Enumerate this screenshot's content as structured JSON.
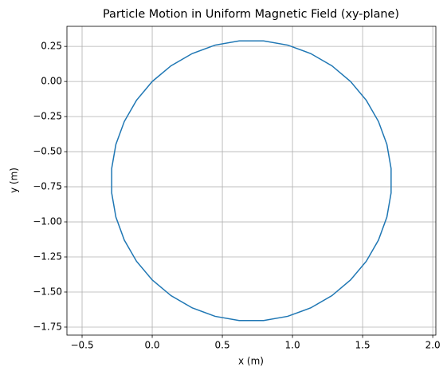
{
  "chart_data": {
    "type": "line",
    "title": "Particle Motion in Uniform Magnetic Field (xy-plane)",
    "xlabel": "x (m)",
    "ylabel": "y (m)",
    "x": [
      0,
      -0.112,
      -0.199,
      -0.259,
      -0.289,
      -0.289,
      -0.259,
      -0.199,
      -0.112,
      0,
      0.134,
      0.285,
      0.448,
      0.62,
      0.794,
      0.966,
      1.13,
      1.281,
      1.414,
      1.526,
      1.613,
      1.673,
      1.703,
      1.703,
      1.673,
      1.613,
      1.526,
      1.414,
      1.281,
      1.13,
      0.966,
      0.794,
      0.62,
      0.448,
      0.285,
      0.134,
      0
    ],
    "series": [
      {
        "color": "#1f77b4",
        "values": [
          0,
          -0.134,
          -0.285,
          -0.448,
          -0.62,
          -0.794,
          -0.966,
          -1.13,
          -1.281,
          -1.414,
          -1.526,
          -1.613,
          -1.673,
          -1.703,
          -1.703,
          -1.673,
          -1.613,
          -1.526,
          -1.414,
          -1.281,
          -1.13,
          -0.966,
          -0.794,
          -0.62,
          -0.448,
          -0.285,
          -0.134,
          0,
          0.112,
          0.199,
          0.259,
          0.289,
          0.289,
          0.259,
          0.199,
          0.112,
          0
        ]
      }
    ],
    "xlim": [
      -0.608,
      2.022
    ],
    "ylim": [
      -1.807,
      0.393
    ],
    "xticks": [
      {
        "value": -0.5,
        "label": "−0.5"
      },
      {
        "value": 0,
        "label": "0.0"
      },
      {
        "value": 0.5,
        "label": "0.5"
      },
      {
        "value": 1,
        "label": "1.0"
      },
      {
        "value": 1.5,
        "label": "1.5"
      },
      {
        "value": 2,
        "label": "2.0"
      }
    ],
    "yticks": [
      0.25,
      {
        "value": 0,
        "label": "0.00"
      },
      {
        "value": -0.25,
        "label": "−0.25"
      },
      {
        "value": -0.5,
        "label": "−0.50"
      },
      {
        "value": -0.75,
        "label": "−0.75"
      },
      {
        "value": -1,
        "label": "−1.00"
      },
      {
        "value": -1.25,
        "label": "−1.25"
      },
      {
        "value": -1.5,
        "label": "−1.50"
      },
      {
        "value": -1.75,
        "label": "−1.75"
      }
    ],
    "grid": true
  }
}
